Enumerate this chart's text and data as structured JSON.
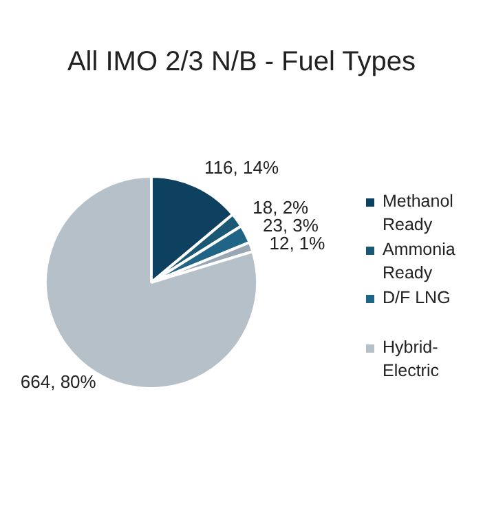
{
  "chart_data": {
    "type": "pie",
    "title": "All IMO 2/3 N/B - Fuel Types",
    "categories": [
      "Methanol Ready",
      "Ammonia Ready",
      "D/F LNG",
      null,
      "Hybrid-Electric"
    ],
    "values": [
      116,
      18,
      23,
      12,
      664
    ],
    "colors": [
      "#0e4160",
      "#1a5874",
      "#206486",
      "#97a8b4",
      "#b5c0c8"
    ],
    "value_labels": [
      "116, 14%",
      "18, 2%",
      "23, 3%",
      "12, 1%",
      "664, 80%"
    ],
    "legend": "right"
  }
}
